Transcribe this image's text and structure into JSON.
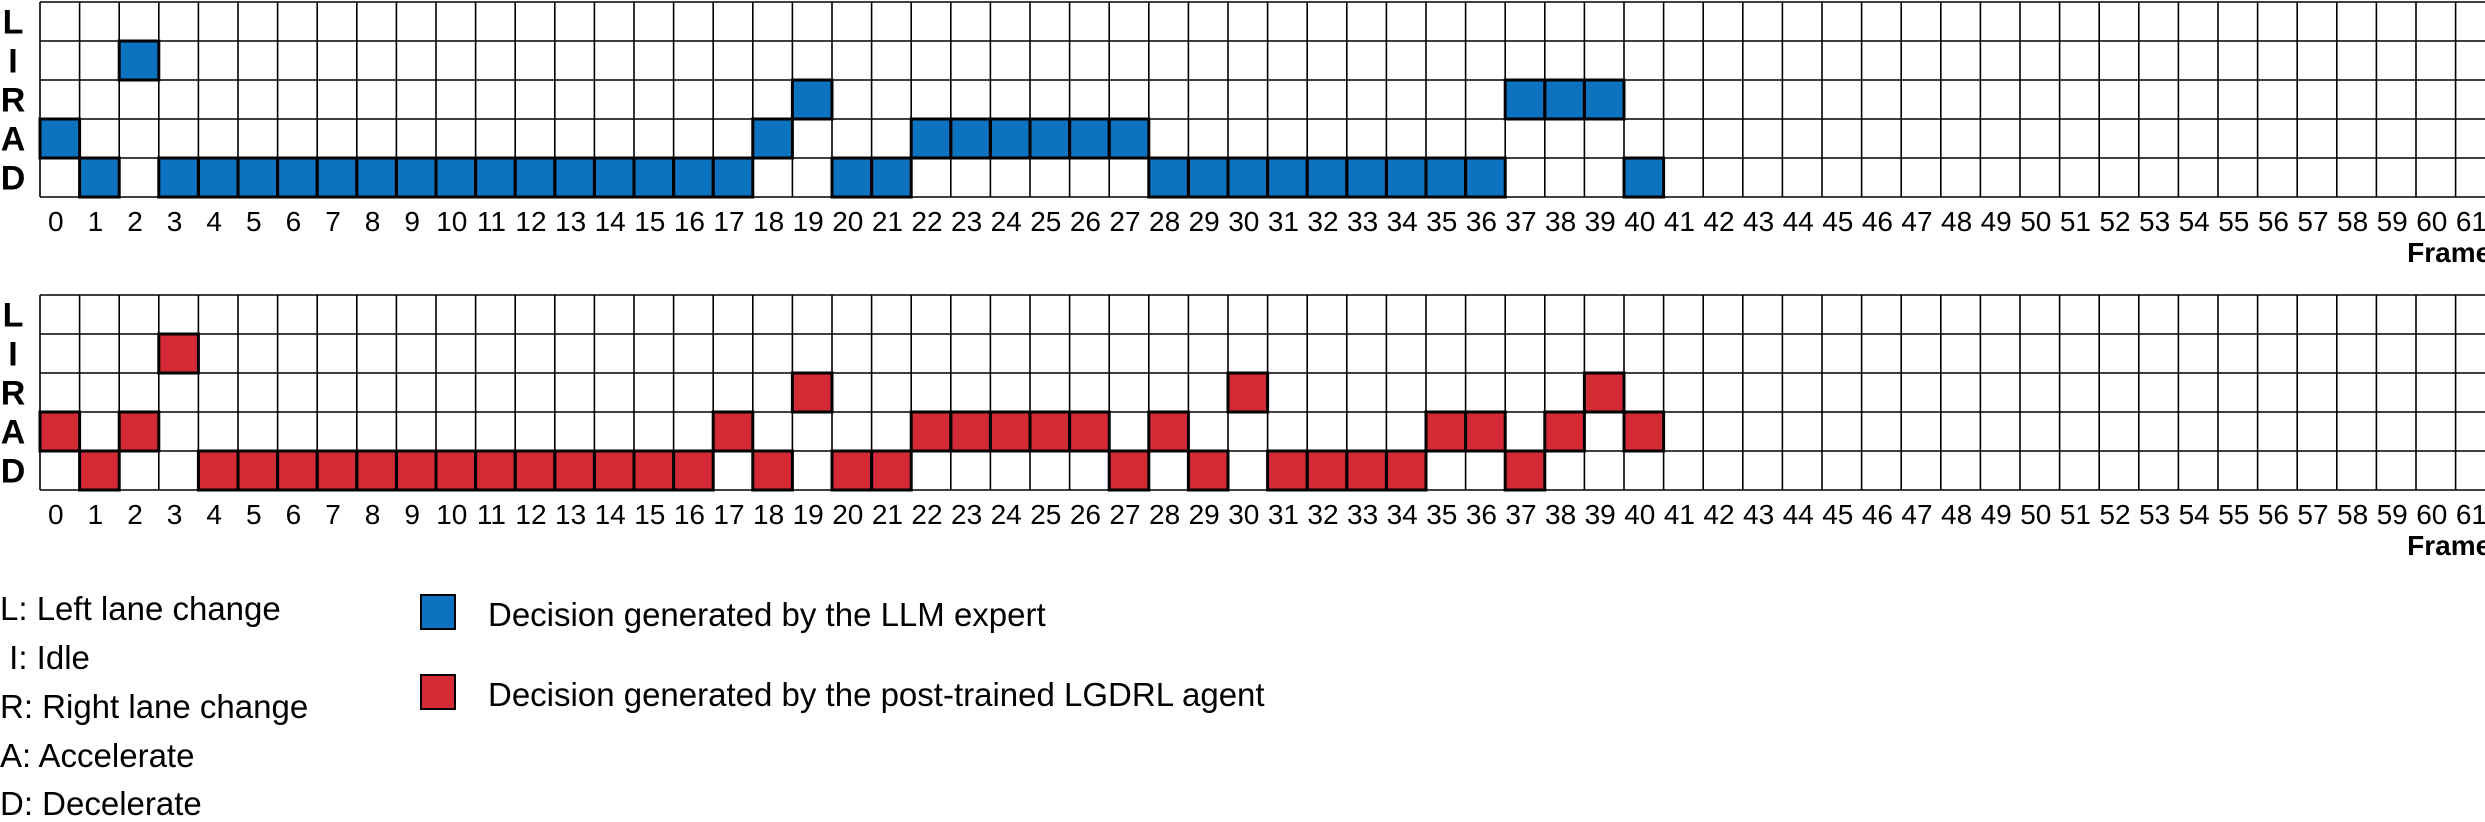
{
  "chart_data": [
    {
      "type": "heatmap",
      "series_name": "Decision generated by the LLM expert",
      "color": "#0d72c0",
      "rows": [
        "L",
        "I",
        "R",
        "A",
        "D"
      ],
      "frames": [
        0,
        1,
        2,
        3,
        4,
        5,
        6,
        7,
        8,
        9,
        10,
        11,
        12,
        13,
        14,
        15,
        16,
        17,
        18,
        19,
        20,
        21,
        22,
        23,
        24,
        25,
        26,
        27,
        28,
        29,
        30,
        31,
        32,
        33,
        34,
        35,
        36,
        37,
        38,
        39,
        40,
        41,
        42,
        43,
        44,
        45,
        46,
        47,
        48,
        49,
        50,
        51,
        52,
        53,
        54,
        55,
        56,
        57,
        58,
        59,
        60,
        61
      ],
      "xlabel": "Frame",
      "decisions": [
        "A",
        "D",
        "I",
        "D",
        "D",
        "D",
        "D",
        "D",
        "D",
        "D",
        "D",
        "D",
        "D",
        "D",
        "D",
        "D",
        "D",
        "D",
        "A",
        "R",
        "D",
        "D",
        "A",
        "A",
        "A",
        "A",
        "A",
        "A",
        "D",
        "D",
        "D",
        "D",
        "D",
        "D",
        "D",
        "D",
        "D",
        "R",
        "R",
        "R",
        "D",
        null,
        null,
        null,
        null,
        null,
        null,
        null,
        null,
        null,
        null,
        null,
        null,
        null,
        null,
        null,
        null,
        null,
        null,
        null,
        null,
        null
      ]
    },
    {
      "type": "heatmap",
      "series_name": "Decision generated by the post-trained LGDRL agent",
      "color": "#d42a35",
      "rows": [
        "L",
        "I",
        "R",
        "A",
        "D"
      ],
      "frames": [
        0,
        1,
        2,
        3,
        4,
        5,
        6,
        7,
        8,
        9,
        10,
        11,
        12,
        13,
        14,
        15,
        16,
        17,
        18,
        19,
        20,
        21,
        22,
        23,
        24,
        25,
        26,
        27,
        28,
        29,
        30,
        31,
        32,
        33,
        34,
        35,
        36,
        37,
        38,
        39,
        40,
        41,
        42,
        43,
        44,
        45,
        46,
        47,
        48,
        49,
        50,
        51,
        52,
        53,
        54,
        55,
        56,
        57,
        58,
        59,
        60,
        61
      ],
      "xlabel": "Frame",
      "decisions": [
        "A",
        "D",
        "A",
        "I",
        "D",
        "D",
        "D",
        "D",
        "D",
        "D",
        "D",
        "D",
        "D",
        "D",
        "D",
        "D",
        "D",
        "A",
        "D",
        "R",
        "D",
        "D",
        "A",
        "A",
        "A",
        "A",
        "A",
        "D",
        "A",
        "D",
        "R",
        "D",
        "D",
        "D",
        "D",
        "A",
        "A",
        "D",
        "A",
        "R",
        "A",
        null,
        null,
        null,
        null,
        null,
        null,
        null,
        null,
        null,
        null,
        null,
        null,
        null,
        null,
        null,
        null,
        null,
        null,
        null,
        null,
        null
      ]
    }
  ],
  "legend": {
    "abbreviations": [
      "L: Left lane change",
      " I: Idle",
      "R: Right lane change",
      "A: Accelerate",
      "D: Decelerate"
    ],
    "llm_label": "Decision generated by the LLM expert",
    "lgdrl_label": "Decision generated by the post-trained LGDRL agent",
    "llm_color": "#0d72c0",
    "lgdrl_color": "#d42a35"
  }
}
